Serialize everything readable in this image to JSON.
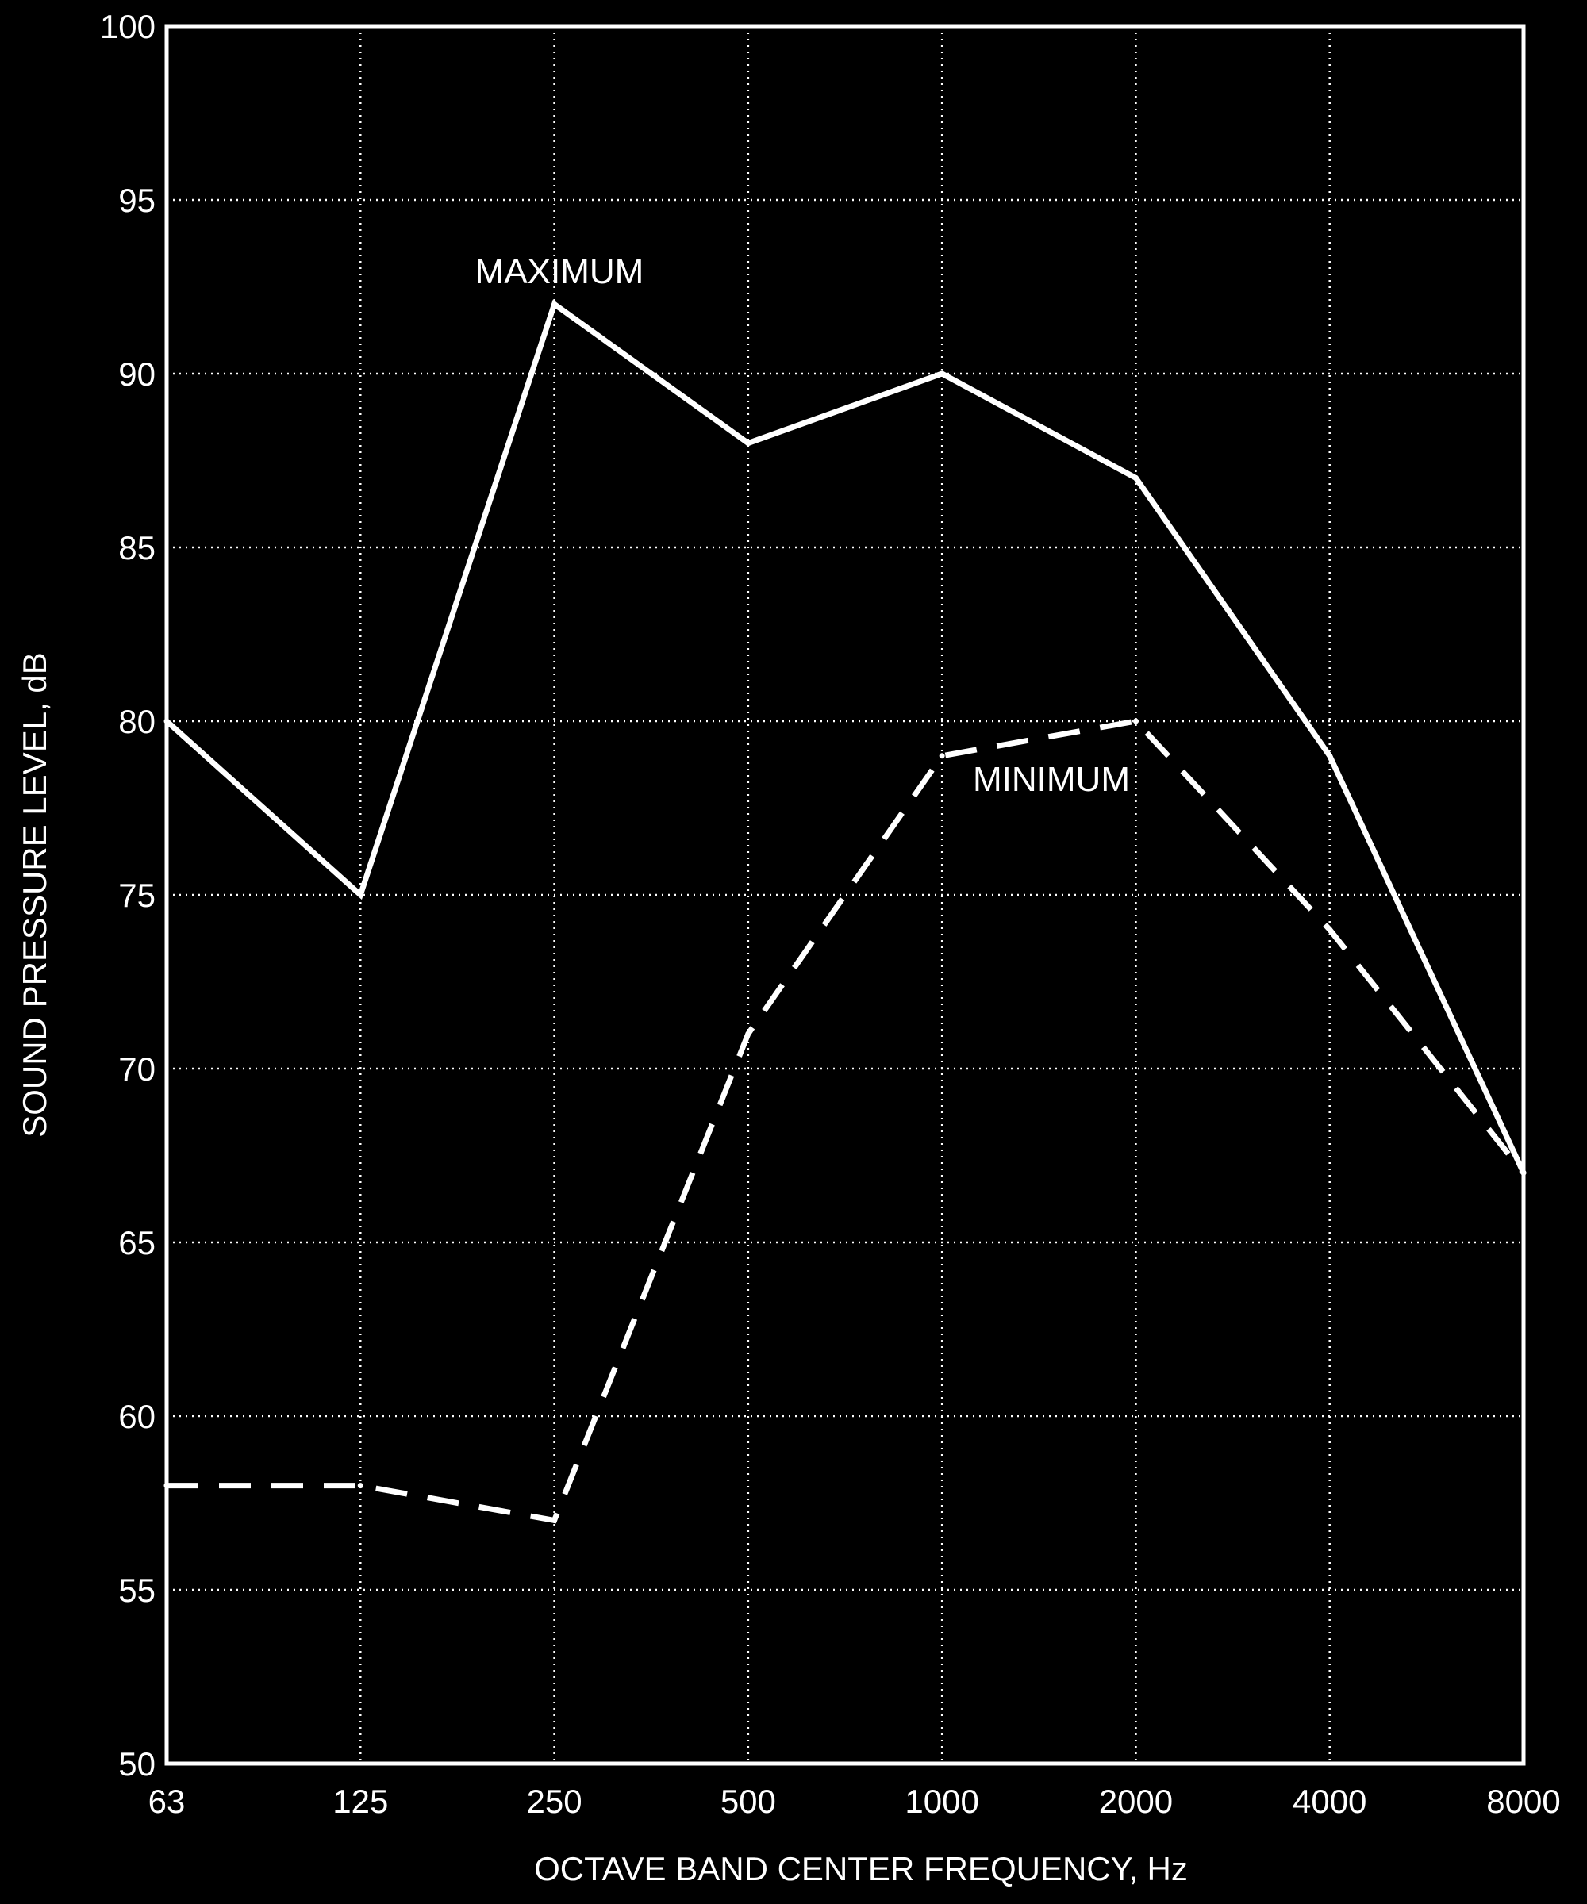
{
  "chart_data": {
    "type": "line",
    "title": "",
    "xlabel": "OCTAVE BAND CENTER FREQUENCY, Hz",
    "ylabel": "SOUND PRESSURE LEVEL, dB",
    "categories": [
      "63",
      "125",
      "250",
      "500",
      "1000",
      "2000",
      "4000",
      "8000"
    ],
    "ylim": [
      50,
      100
    ],
    "yticks": [
      50,
      55,
      60,
      65,
      70,
      75,
      80,
      85,
      90,
      95,
      100
    ],
    "grid": true,
    "colors": {
      "background": "#000000",
      "foreground": "#ffffff"
    },
    "series": [
      {
        "name": "MAXIMUM",
        "style": "solid",
        "values": [
          80,
          75,
          92,
          88,
          90,
          87,
          79,
          67
        ]
      },
      {
        "name": "MINIMUM",
        "style": "dashed",
        "values": [
          58,
          58,
          57,
          71,
          79,
          80,
          74,
          67
        ]
      }
    ]
  }
}
